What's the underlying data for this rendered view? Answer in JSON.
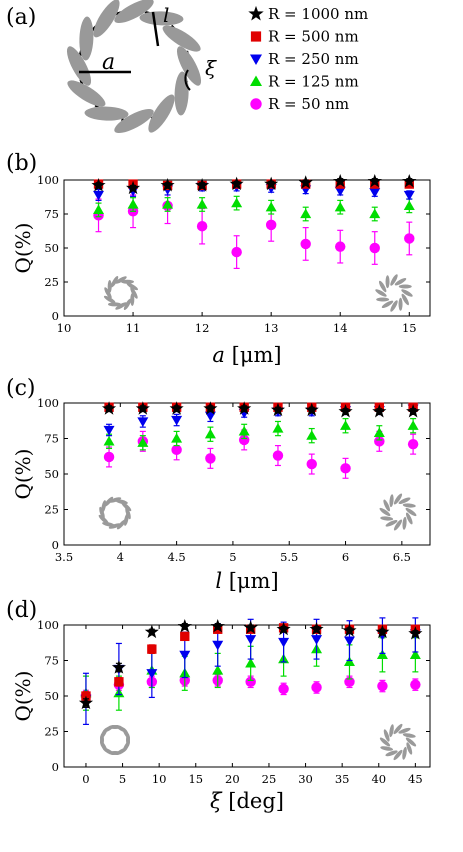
{
  "panel_labels": [
    "(a)",
    "(b)",
    "(c)",
    "(d)"
  ],
  "schematic": {
    "label_a": "a",
    "label_l": "l",
    "label_xi": "ξ",
    "ellipse_color": "#999999"
  },
  "legend": [
    {
      "label": "R = 1000 nm",
      "marker": "star",
      "color": "#000000"
    },
    {
      "label": "R = 500 nm",
      "marker": "square",
      "color": "#e00000"
    },
    {
      "label": "R = 250 nm",
      "marker": "triangle-down",
      "color": "#0000ee"
    },
    {
      "label": "R = 125 nm",
      "marker": "triangle-up",
      "color": "#00dd00"
    },
    {
      "label": "R = 50 nm",
      "marker": "circle",
      "color": "#ff00ff"
    }
  ],
  "chart_data": [
    {
      "type": "scatter",
      "panel": "(b)",
      "ylabel": "Q(%)",
      "xlabel_main": "a",
      "xlabel_unit": "[μm]",
      "xlim": [
        10,
        15.3
      ],
      "ylim": [
        0,
        100
      ],
      "xticks": [
        10,
        11,
        12,
        13,
        14,
        15
      ],
      "xtick_labels": [
        "10",
        "11",
        "12",
        "13",
        "14",
        "15"
      ],
      "yticks": [
        0,
        25,
        50,
        75,
        100
      ],
      "ytick_labels": [
        "0",
        "25",
        "50",
        "75",
        "100"
      ],
      "x": [
        10.5,
        11,
        11.5,
        12,
        12.5,
        13,
        13.5,
        14,
        14.5,
        15
      ],
      "series": [
        {
          "name": "R = 1000 nm",
          "values": [
            96,
            94,
            96,
            96,
            97,
            97,
            98,
            99,
            99,
            99
          ],
          "errors": [
            2,
            2,
            2,
            2,
            2,
            2,
            2,
            2,
            2,
            2
          ]
        },
        {
          "name": "R = 500 nm",
          "values": [
            97,
            97,
            96,
            96,
            97,
            97,
            97,
            97,
            97,
            97
          ],
          "errors": [
            2,
            2,
            2,
            2,
            2,
            2,
            2,
            2,
            2,
            2
          ]
        },
        {
          "name": "R = 250 nm",
          "values": [
            89,
            92,
            93,
            95,
            95,
            94,
            93,
            92,
            91,
            89
          ],
          "errors": [
            4,
            4,
            4,
            3,
            3,
            3,
            3,
            3,
            3,
            3
          ]
        },
        {
          "name": "R = 125 nm",
          "values": [
            78,
            82,
            82,
            82,
            83,
            80,
            75,
            80,
            75,
            81
          ],
          "errors": [
            5,
            5,
            5,
            5,
            5,
            5,
            5,
            5,
            5,
            5
          ]
        },
        {
          "name": "R = 50 nm",
          "values": [
            74,
            77,
            81,
            66,
            47,
            67,
            53,
            51,
            50,
            57
          ],
          "errors": [
            12,
            12,
            13,
            13,
            12,
            12,
            12,
            12,
            12,
            12
          ]
        }
      ],
      "insets": [
        "ring-left",
        "ring-right"
      ]
    },
    {
      "type": "scatter",
      "panel": "(c)",
      "ylabel": "Q(%)",
      "xlabel_main": "l",
      "xlabel_unit": "[μm]",
      "xlim": [
        3.5,
        6.75
      ],
      "ylim": [
        0,
        100
      ],
      "xticks": [
        3.5,
        4,
        4.5,
        5,
        5.5,
        6,
        6.5
      ],
      "xtick_labels": [
        "3.5",
        "4",
        "4.5",
        "5",
        "5.5",
        "6",
        "6.5"
      ],
      "yticks": [
        0,
        25,
        50,
        75,
        100
      ],
      "ytick_labels": [
        "0",
        "25",
        "50",
        "75",
        "100"
      ],
      "x": [
        3.9,
        4.2,
        4.5,
        4.8,
        5.1,
        5.4,
        5.7,
        6.0,
        6.3,
        6.6
      ],
      "series": [
        {
          "name": "R = 1000 nm",
          "values": [
            96,
            96,
            96,
            96,
            96,
            95,
            95,
            94,
            94,
            94
          ],
          "errors": [
            2,
            2,
            2,
            2,
            2,
            2,
            2,
            2,
            2,
            2
          ]
        },
        {
          "name": "R = 500 nm",
          "values": [
            97,
            97,
            97,
            97,
            97,
            97,
            97,
            97,
            97,
            97
          ],
          "errors": [
            2,
            2,
            2,
            2,
            2,
            2,
            2,
            2,
            2,
            2
          ]
        },
        {
          "name": "R = 250 nm",
          "values": [
            81,
            87,
            88,
            91,
            93,
            94,
            94,
            95,
            95,
            96
          ],
          "errors": [
            4,
            4,
            4,
            4,
            3,
            3,
            3,
            3,
            3,
            3
          ]
        },
        {
          "name": "R = 125 nm",
          "values": [
            73,
            72,
            75,
            78,
            80,
            82,
            77,
            84,
            79,
            84
          ],
          "errors": [
            5,
            5,
            5,
            5,
            5,
            5,
            5,
            5,
            5,
            5
          ]
        },
        {
          "name": "R = 50 nm",
          "values": [
            62,
            73,
            67,
            61,
            74,
            63,
            57,
            54,
            73,
            71
          ],
          "errors": [
            7,
            7,
            7,
            7,
            7,
            7,
            7,
            7,
            7,
            7
          ]
        }
      ],
      "insets": [
        "ring-left",
        "ring-right"
      ]
    },
    {
      "type": "scatter",
      "panel": "(d)",
      "ylabel": "Q(%)",
      "xlabel_main": "ξ",
      "xlabel_unit": "[deg]",
      "xlim": [
        -3,
        47
      ],
      "ylim": [
        0,
        100
      ],
      "xticks": [
        0,
        5,
        10,
        15,
        20,
        25,
        30,
        35,
        40,
        45
      ],
      "xtick_labels": [
        "0",
        "5",
        "10",
        "15",
        "20",
        "25",
        "30",
        "35",
        "40",
        "45"
      ],
      "yticks": [
        0,
        25,
        50,
        75,
        100
      ],
      "ytick_labels": [
        "0",
        "25",
        "50",
        "75",
        "100"
      ],
      "x": [
        0,
        4.5,
        9,
        13.5,
        18,
        22.5,
        27,
        31.5,
        36,
        40.5,
        45
      ],
      "series": [
        {
          "name": "R = 1000 nm",
          "values": [
            45,
            70,
            95,
            99,
            99,
            98,
            97,
            97,
            96,
            95,
            94
          ],
          "errors": [
            3,
            3,
            2,
            2,
            2,
            2,
            2,
            2,
            2,
            2,
            2
          ]
        },
        {
          "name": "R = 500 nm",
          "values": [
            50,
            60,
            83,
            92,
            97,
            97,
            98,
            97,
            97,
            97,
            97
          ],
          "errors": [
            3,
            3,
            3,
            2,
            2,
            2,
            2,
            2,
            2,
            2,
            2
          ]
        },
        {
          "name": "R = 250 nm",
          "values": [
            48,
            69,
            66,
            79,
            86,
            90,
            88,
            90,
            89,
            93,
            94
          ],
          "errors": [
            18,
            18,
            17,
            16,
            15,
            14,
            14,
            14,
            14,
            13,
            13
          ]
        },
        {
          "name": "R = 125 nm",
          "values": [
            52,
            52,
            68,
            66,
            68,
            73,
            76,
            83,
            74,
            79,
            79
          ],
          "errors": [
            12,
            12,
            12,
            12,
            12,
            12,
            12,
            12,
            12,
            12,
            12
          ]
        },
        {
          "name": "R = 50 nm",
          "values": [
            50,
            58,
            60,
            61,
            61,
            60,
            55,
            56,
            60,
            57,
            58
          ],
          "errors": [
            4,
            4,
            4,
            4,
            4,
            4,
            4,
            4,
            4,
            4,
            4
          ]
        }
      ],
      "insets": [
        "ring-left",
        "ring-right"
      ]
    }
  ]
}
